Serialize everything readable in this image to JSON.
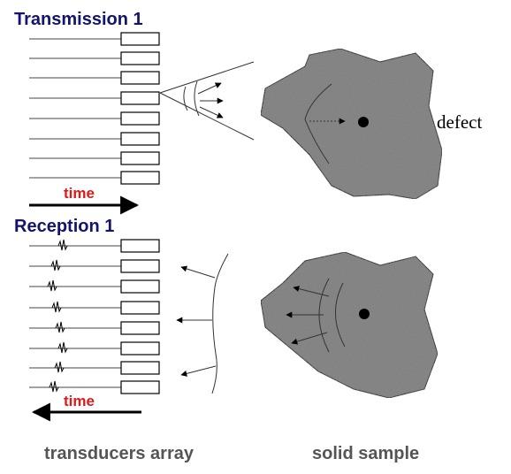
{
  "transmission": {
    "title": "Transmission 1",
    "time_label": "time"
  },
  "reception": {
    "title": "Reception 1",
    "time_label": "time"
  },
  "defect_label": "defect",
  "captions": [
    "transducers array",
    "solid sample"
  ]
}
